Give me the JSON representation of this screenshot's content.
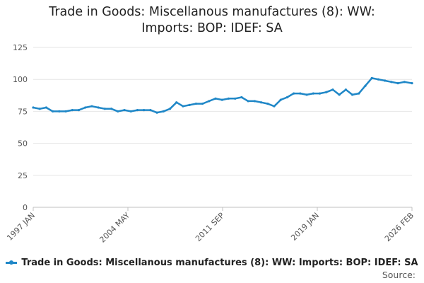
{
  "title_line1": "Trade in Goods: Miscellanous manufactures (8): WW:",
  "title_line2": "Imports: BOP: IDEF: SA",
  "source_label": "Source:",
  "colors": {
    "series": "#1f87c7",
    "grid": "#e6e6e6",
    "axis": "#c0c0c0",
    "tick_text": "#555555"
  },
  "chart_data": {
    "type": "line",
    "title": "Trade in Goods: Miscellanous manufactures (8): WW: Imports: BOP: IDEF: SA",
    "xlabel": "",
    "ylabel": "",
    "ylim": [
      0,
      125
    ],
    "yticks": [
      0,
      25,
      50,
      75,
      100,
      125
    ],
    "x_start": "1997 JAN",
    "x_end": "2026 FEB",
    "x_tick_labels": [
      "1997 JAN",
      "2004 MAY",
      "2011 SEP",
      "2019 JAN",
      "2026 FEB"
    ],
    "grid": "horizontal",
    "legend_position": "bottom",
    "series": [
      {
        "name": "Trade in Goods: Miscellanous manufactures (8): WW: Imports: BOP: IDEF: SA",
        "x": [
          1997.0,
          1997.5,
          1998.0,
          1998.5,
          1999.0,
          1999.5,
          2000.0,
          2000.5,
          2001.0,
          2001.5,
          2002.0,
          2002.5,
          2003.0,
          2003.5,
          2004.0,
          2004.5,
          2005.0,
          2005.5,
          2006.0,
          2006.5,
          2007.0,
          2007.5,
          2008.0,
          2008.5,
          2009.0,
          2009.5,
          2010.0,
          2010.5,
          2011.0,
          2011.5,
          2012.0,
          2012.5,
          2013.0,
          2013.5,
          2014.0,
          2014.5,
          2015.0,
          2015.5,
          2016.0,
          2016.5,
          2017.0,
          2017.5,
          2018.0,
          2018.5,
          2019.0,
          2019.5,
          2020.0,
          2020.5,
          2021.0,
          2021.5,
          2022.0,
          2022.5,
          2023.0,
          2023.5,
          2024.0,
          2024.5,
          2025.0,
          2025.5,
          2026.08
        ],
        "values": [
          78,
          77,
          78,
          75,
          75,
          75,
          76,
          76,
          78,
          79,
          78,
          77,
          77,
          75,
          76,
          75,
          76,
          76,
          76,
          74,
          75,
          77,
          82,
          79,
          80,
          81,
          81,
          83,
          85,
          84,
          85,
          85,
          86,
          83,
          83,
          82,
          81,
          79,
          84,
          86,
          89,
          89,
          88,
          89,
          89,
          90,
          92,
          88,
          92,
          88,
          89,
          95,
          101,
          100,
          99,
          98,
          97,
          98,
          97
        ]
      }
    ]
  }
}
